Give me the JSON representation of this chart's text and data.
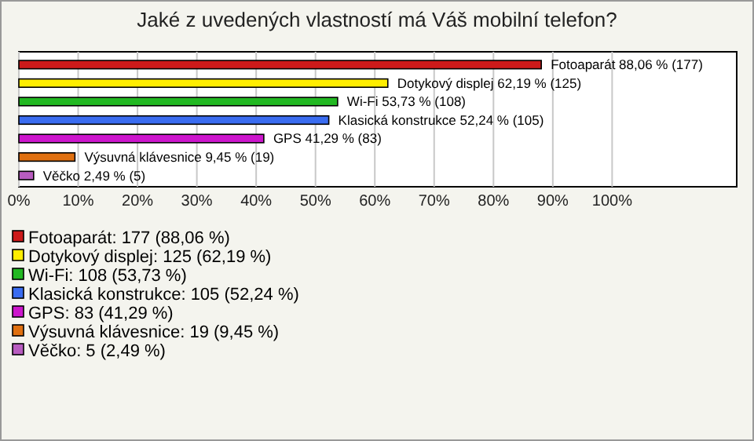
{
  "chart_data": {
    "type": "bar",
    "orientation": "horizontal",
    "title": "Jaké z uvedených vlastností má Váš mobilní telefon?",
    "categories": [
      "Fotoaparát",
      "Dotykový displej",
      "Wi-Fi",
      "Klasická konstrukce",
      "GPS",
      "Výsuvná klávesnice",
      "Věčko"
    ],
    "values": [
      88.06,
      62.19,
      53.73,
      52.24,
      41.29,
      9.45,
      2.49
    ],
    "colors": [
      "#cc1a1a",
      "#ffee00",
      "#22b822",
      "#3a6cf0",
      "#cc16cc",
      "#e07010",
      "#b85cc0"
    ],
    "value_labels": [
      "88,06 % (177)",
      "62,19 % (125)",
      "53,73 % (108)",
      "52,24 % (105)",
      "41,29 % (83)",
      "9,45 % (19)",
      "2,49 % (5)"
    ],
    "xlim": [
      0,
      121
    ],
    "xticks": [
      {
        "value": 0,
        "label": "0%"
      },
      {
        "value": 10,
        "label": "10%"
      },
      {
        "value": 20,
        "label": "20%"
      },
      {
        "value": 30,
        "label": "30%"
      },
      {
        "value": 40,
        "label": "40%"
      },
      {
        "value": 50,
        "label": "50%"
      },
      {
        "value": 60,
        "label": "60%"
      },
      {
        "value": 70,
        "label": "70%"
      },
      {
        "value": 80,
        "label": "80%"
      },
      {
        "value": 90,
        "label": "90%"
      },
      {
        "value": 100,
        "label": "100%"
      }
    ],
    "grid": "x",
    "tick_labels": "x",
    "annotations": [
      "Fotoaparát: 177 (88,06 %)",
      "Dotykový displej: 125 (62,19 %)",
      "Wi-Fi: 108 (53,73 %)",
      "Klasická konstrukce: 105 (52,24 %)",
      "GPS: 83 (41,29 %)",
      "Výsuvná klávesnice: 19 (9,45 %)",
      "Věčko: 5 (2,49 %)"
    ]
  }
}
